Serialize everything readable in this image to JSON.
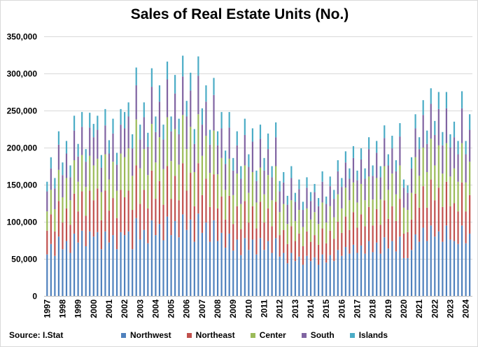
{
  "chart_data": {
    "type": "bar",
    "stacked": true,
    "title": "Sales of Real Estate Units (No.)",
    "source": "Source: I.Stat",
    "frequency": "quarterly",
    "period_range": [
      "1997 Q1",
      "2024 Q2"
    ],
    "x_tick_labels": [
      "1997",
      "1998",
      "1999",
      "2000",
      "2001",
      "2002",
      "2003",
      "2004",
      "2005",
      "2006",
      "2007",
      "2008",
      "2009",
      "2010",
      "2011",
      "2012",
      "2013",
      "2014",
      "2015",
      "2016",
      "2017",
      "2018",
      "2019",
      "2020",
      "2021",
      "2022",
      "2023",
      "2024"
    ],
    "y_tick_labels": [
      "0",
      "50,000",
      "100,000",
      "150,000",
      "200,000",
      "250,000",
      "300,000",
      "350,000"
    ],
    "ylim": [
      0,
      350000
    ],
    "grid": true,
    "legend_position": "bottom",
    "xlabel": "",
    "ylabel": "",
    "series": [
      {
        "name": "Northwest",
        "color": "#4f81bd",
        "values": [
          56000,
          70000,
          54000,
          80000,
          63000,
          74000,
          58000,
          84000,
          72000,
          88000,
          67000,
          87000,
          80000,
          86000,
          63000,
          87000,
          72000,
          82000,
          63000,
          86000,
          82000,
          87000,
          63000,
          105000,
          76000,
          89000,
          71000,
          102000,
          82000,
          97000,
          75000,
          107000,
          82000,
          101000,
          79000,
          110000,
          89000,
          103000,
          73000,
          111000,
          85000,
          99000,
          73000,
          102000,
          74000,
          85000,
          65000,
          84000,
          61000,
          76000,
          55000,
          78000,
          62000,
          76000,
          56000,
          78000,
          62000,
          74000,
          58000,
          78000,
          53000,
          58000,
          44000,
          58000,
          47000,
          53000,
          42000,
          54000,
          47000,
          52000,
          42000,
          56000,
          45000,
          55000,
          47000,
          62000,
          54000,
          66000,
          57000,
          69000,
          58000,
          68000,
          57000,
          74000,
          59000,
          72000,
          57000,
          79000,
          64000,
          74000,
          60000,
          80000,
          51000,
          51000,
          62000,
          83000,
          73000,
          92000,
          74000,
          95000,
          80000,
          87000,
          73000,
          95000,
          76000,
          74000,
          70000,
          95000,
          71000,
          84000
        ]
      },
      {
        "name": "Northeast",
        "color": "#c0504d",
        "values": [
          32000,
          40000,
          33000,
          48000,
          36000,
          44000,
          38000,
          54000,
          42000,
          53000,
          41000,
          55000,
          49000,
          59000,
          39000,
          55000,
          43000,
          50000,
          42000,
          57000,
          51000,
          55000,
          53000,
          71000,
          48000,
          54000,
          47000,
          67000,
          49000,
          58000,
          48000,
          68000,
          49000,
          61000,
          50000,
          69000,
          53000,
          63000,
          48000,
          68000,
          51000,
          59000,
          47000,
          62000,
          44000,
          49000,
          38000,
          51000,
          36000,
          45000,
          35000,
          50000,
          37000,
          45000,
          35000,
          49000,
          37000,
          44000,
          36000,
          49000,
          29000,
          31000,
          26000,
          36000,
          27000,
          31000,
          25000,
          33000,
          26000,
          30000,
          27000,
          35000,
          26000,
          33000,
          30000,
          38000,
          31000,
          41000,
          32000,
          44000,
          34000,
          42000,
          37000,
          46000,
          36000,
          45000,
          39000,
          50000,
          40000,
          47000,
          41000,
          51000,
          33000,
          35000,
          41000,
          55000,
          46000,
          56000,
          45000,
          62000,
          49000,
          59000,
          47000,
          59000,
          45000,
          51000,
          44000,
          58000,
          43000,
          52000
        ]
      },
      {
        "name": "Center",
        "color": "#9bbb59",
        "values": [
          26000,
          33000,
          30000,
          42000,
          34000,
          41000,
          33000,
          45000,
          40000,
          49000,
          39000,
          47000,
          47000,
          40000,
          38000,
          49000,
          42000,
          49000,
          37000,
          49000,
          54000,
          57000,
          46000,
          62000,
          48000,
          55000,
          45000,
          63000,
          49000,
          59000,
          48000,
          66000,
          51000,
          63000,
          48000,
          65000,
          56000,
          62000,
          46000,
          66000,
          53000,
          58000,
          46000,
          59000,
          46000,
          52000,
          40000,
          50000,
          39000,
          44000,
          34000,
          48000,
          40000,
          46000,
          35000,
          46000,
          38000,
          45000,
          35000,
          48000,
          31000,
          35000,
          27000,
          35000,
          27000,
          32000,
          26000,
          31000,
          30000,
          31000,
          28000,
          35000,
          28000,
          33000,
          29000,
          37000,
          33000,
          39000,
          40000,
          40000,
          34000,
          41000,
          35000,
          41000,
          35000,
          42000,
          34000,
          46000,
          39000,
          44000,
          36000,
          45000,
          35000,
          30000,
          36000,
          49000,
          43000,
          52000,
          48000,
          55000,
          47000,
          57000,
          45000,
          52000,
          40000,
          47000,
          40000,
          53000,
          39000,
          45000
        ]
      },
      {
        "name": "South",
        "color": "#8064a2",
        "values": [
          27000,
          29000,
          28000,
          34000,
          30000,
          33000,
          31000,
          40000,
          34000,
          38000,
          34000,
          38000,
          38000,
          39000,
          33000,
          39000,
          35000,
          38000,
          35000,
          39000,
          39000,
          43000,
          37000,
          46000,
          39000,
          43000,
          38000,
          50000,
          41000,
          48000,
          40000,
          51000,
          40000,
          48000,
          41000,
          52000,
          44000,
          49000,
          38000,
          52000,
          42000,
          46000,
          38000,
          48000,
          39000,
          40000,
          35000,
          42000,
          33000,
          38000,
          34000,
          41000,
          35000,
          41000,
          29000,
          39000,
          32000,
          35000,
          31000,
          39000,
          28000,
          29000,
          26000,
          30000,
          26000,
          28000,
          23000,
          28000,
          25000,
          27000,
          24000,
          28000,
          25000,
          27000,
          25000,
          31000,
          29000,
          34000,
          29000,
          33000,
          30000,
          33000,
          29000,
          37000,
          32000,
          34000,
          30000,
          38000,
          33000,
          34000,
          31000,
          39000,
          27000,
          23000,
          33000,
          39000,
          36000,
          44000,
          38000,
          47000,
          41000,
          49000,
          38000,
          47000,
          39000,
          42000,
          37000,
          47000,
          38000,
          43000
        ]
      },
      {
        "name": "Islands",
        "color": "#4bacc6",
        "values": [
          13000,
          15000,
          14000,
          18000,
          17000,
          17000,
          16000,
          20000,
          17000,
          20000,
          17000,
          20000,
          18000,
          19000,
          17000,
          22000,
          18000,
          20000,
          16000,
          21000,
          22000,
          19000,
          19000,
          24000,
          20000,
          20000,
          19000,
          25000,
          21000,
          22000,
          20000,
          24000,
          20000,
          25000,
          21000,
          28000,
          21000,
          24000,
          20000,
          26000,
          22000,
          22000,
          20000,
          23000,
          19000,
          22000,
          18000,
          21000,
          17000,
          19000,
          17000,
          22000,
          17000,
          18000,
          14000,
          19000,
          17000,
          21000,
          15000,
          20000,
          14000,
          14000,
          12000,
          16000,
          12000,
          13000,
          11000,
          14000,
          12000,
          11000,
          11000,
          14000,
          10000,
          13000,
          12000,
          15000,
          12000,
          15000,
          14000,
          16000,
          13000,
          15000,
          14000,
          16000,
          14000,
          16000,
          15000,
          17000,
          15000,
          17000,
          15000,
          18000,
          11000,
          10000,
          15000,
          19000,
          16000,
          20000,
          18000,
          21000,
          19000,
          23000,
          18000,
          22000,
          18000,
          21000,
          18000,
          23000,
          18000,
          21000
        ]
      }
    ]
  }
}
